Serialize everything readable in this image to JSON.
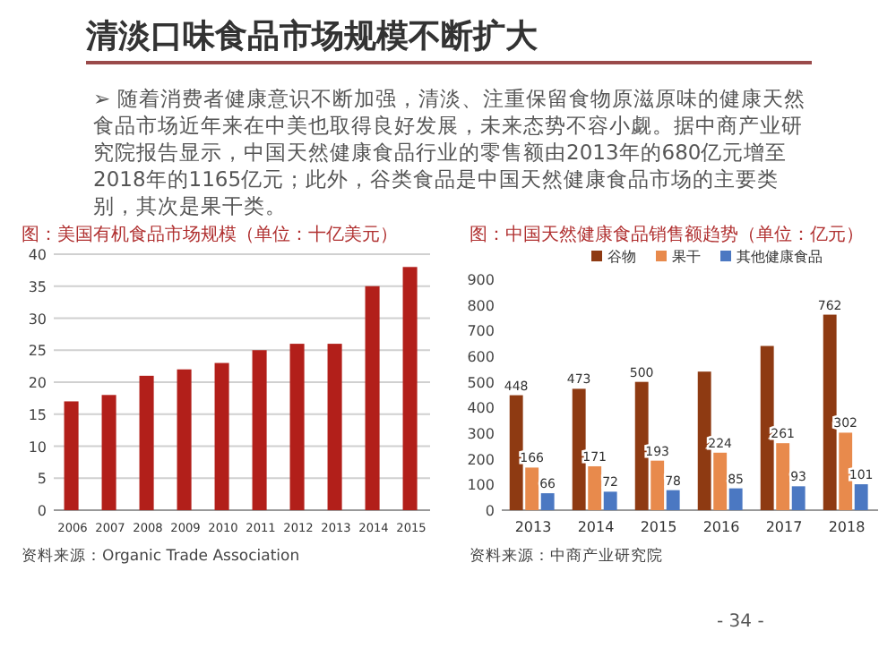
{
  "chart_data": [
    {
      "type": "other",
      "title": "清淡口味食品市场规模不断扩大",
      "annotations": [
        "➢ 随着消费者健康意识不断加强，清淡、注重保留食物原滋原味的健康天然食品市场近年来在中美也取得良好发展，未来态势不容小觑。据中商产业研究院报告显示，中国天然健康食品行业的零售额由2013年的680亿元增至2018年的1165亿元；此外，谷类食品是中国天然健康食品市场的主要类别，其次是果干类。",
        "- 34 -"
      ]
    },
    {
      "type": "bar",
      "title": "图：美国有机食品市场规模（单位：十亿美元）",
      "categories": [
        "2006",
        "2007",
        "2008",
        "2009",
        "2010",
        "2011",
        "2012",
        "2013",
        "2014",
        "2015"
      ],
      "values": [
        17,
        18,
        21,
        22,
        23,
        25,
        26,
        26,
        35,
        38
      ],
      "color": "#b21f1a",
      "ylim": [
        0,
        40
      ],
      "yticks": [
        0,
        5,
        10,
        15,
        20,
        25,
        30,
        35,
        40
      ],
      "grid": "y",
      "annotations": [
        "资料来源：Organic Trade Association"
      ]
    },
    {
      "type": "bar",
      "title": "图：中国天然健康食品销售额趋势（单位：亿元）",
      "categories": [
        "2013",
        "2014",
        "2015",
        "2016",
        "2017",
        "2018"
      ],
      "legend": "top",
      "ylim": [
        0,
        900
      ],
      "yticks": [
        0,
        100,
        200,
        300,
        400,
        500,
        600,
        700,
        800,
        900
      ],
      "series": [
        {
          "name": "谷物",
          "color": "#8e3a12",
          "values": [
            448,
            473,
            500,
            540,
            640,
            762
          ],
          "value_labels": [
            "448",
            "473",
            "500",
            null,
            null,
            "762"
          ]
        },
        {
          "name": "果干",
          "color": "#e88a4c",
          "values": [
            166,
            171,
            193,
            224,
            261,
            302
          ],
          "value_labels": [
            "166",
            "171",
            "193",
            "224",
            "261",
            "302"
          ]
        },
        {
          "name": "其他健康食品",
          "color": "#4b78c2",
          "values": [
            66,
            72,
            78,
            85,
            93,
            101
          ],
          "value_labels": [
            "66",
            "72",
            "78",
            "85",
            "93",
            "101"
          ]
        }
      ],
      "annotations": [
        "资料来源：中商产业研究院"
      ]
    }
  ]
}
